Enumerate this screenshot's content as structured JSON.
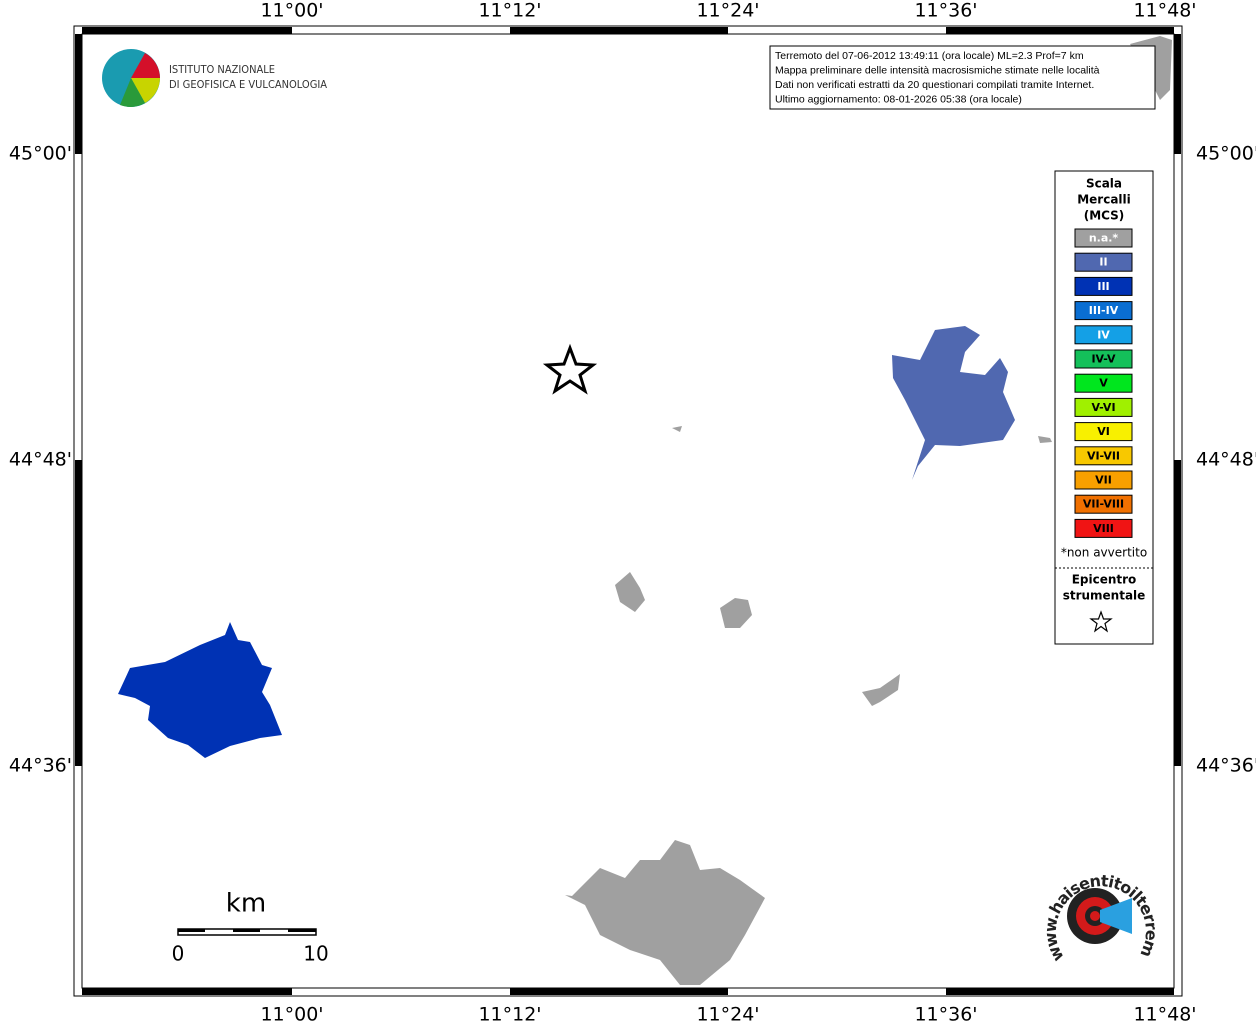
{
  "logo": {
    "lines": [
      "ISTITUTO NAZIONALE",
      "DI GEOFISICA E VULCANOLOGIA"
    ]
  },
  "map": {
    "lon_labels": [
      "11°00'",
      "11°12'",
      "11°24'",
      "11°36'",
      "11°48'"
    ],
    "lat_labels": [
      "45°00'",
      "44°48'",
      "44°36'"
    ]
  },
  "info_box": {
    "lines": [
      "Terremoto del 07-06-2012 13:49:11 (ora locale) ML=2.3 Prof=7 km",
      "Mappa preliminare delle intensità macrosismiche stimate nelle località",
      "Dati non verificati estratti da 20 questionari compilati tramite Internet.",
      "Ultimo aggiornamento: 08-01-2026 05:38 (ora locale)"
    ]
  },
  "legend": {
    "title": [
      "Scala",
      "Mercalli",
      "(MCS)"
    ],
    "entries": [
      {
        "label": "n.a.*",
        "color": "#a0a0a0"
      },
      {
        "label": "II",
        "color": "#5068b0"
      },
      {
        "label": "III",
        "color": "#0032b4"
      },
      {
        "label": "III-IV",
        "color": "#0a6ed2"
      },
      {
        "label": "IV",
        "color": "#14a0e6"
      },
      {
        "label": "IV-V",
        "color": "#14c05a"
      },
      {
        "label": "V",
        "color": "#00e61e"
      },
      {
        "label": "V-VI",
        "color": "#a0f000"
      },
      {
        "label": "VI",
        "color": "#f8f000"
      },
      {
        "label": "VI-VII",
        "color": "#f8c800"
      },
      {
        "label": "VII",
        "color": "#f8a000"
      },
      {
        "label": "VII-VIII",
        "color": "#f07000"
      },
      {
        "label": "VIII",
        "color": "#f01414"
      }
    ],
    "note": "*non avvertito",
    "epicenter": [
      "Epicentro",
      "strumentale"
    ]
  },
  "scale_bar": {
    "unit": "km",
    "labels": [
      "0",
      "10"
    ]
  },
  "site_logo": {
    "text": "www.haisentitoilterremoto.it"
  }
}
